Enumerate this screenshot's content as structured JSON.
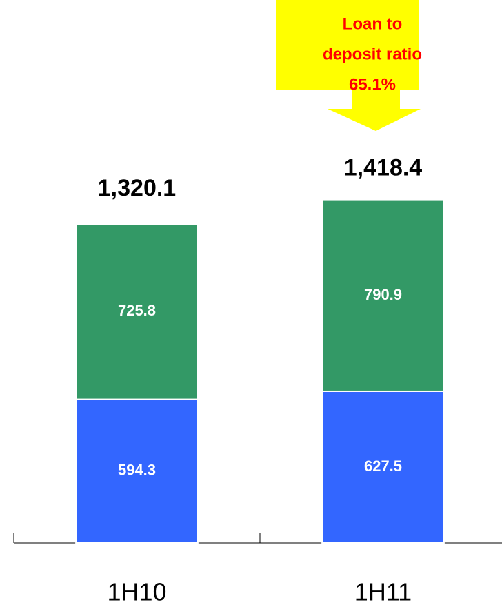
{
  "chart_data": {
    "type": "stacked_bar",
    "categories": [
      "1H10",
      "1H11"
    ],
    "series": [
      {
        "color": "#3366ff",
        "values": [
          594.3,
          627.5
        ]
      },
      {
        "color": "#339966",
        "values": [
          725.8,
          790.9
        ]
      }
    ],
    "totals": {
      "values": [
        1320.1,
        1418.4
      ],
      "value_labels": [
        "1,320.1",
        "1,418.4"
      ]
    },
    "annotation": {
      "lines": [
        "Loan to",
        "deposit ratio",
        "65.1%"
      ],
      "color": "#ffff00",
      "text_color": "#ff0000"
    },
    "ylim": [
      0,
      2247
    ]
  }
}
